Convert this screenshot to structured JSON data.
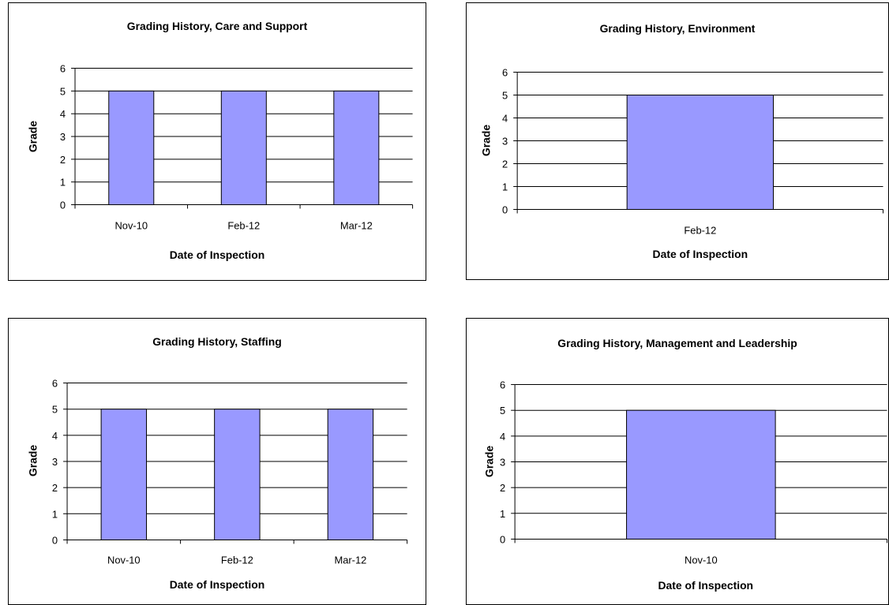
{
  "chart_data": [
    {
      "type": "bar",
      "title": "Grading History, Care and Support",
      "xlabel": "Date of Inspection",
      "ylabel": "Grade",
      "categories": [
        "Nov-10",
        "Feb-12",
        "Mar-12"
      ],
      "values": [
        5,
        5,
        5
      ],
      "ylim": [
        0,
        6
      ],
      "yticks": [
        "0",
        "1",
        "2",
        "3",
        "4",
        "5",
        "6"
      ],
      "grid": true,
      "legend": "none",
      "bar_color": "#9999ff"
    },
    {
      "type": "bar",
      "title": "Grading History, Environment",
      "xlabel": "Date of Inspection",
      "ylabel": "Grade",
      "categories": [
        "Feb-12"
      ],
      "values": [
        5
      ],
      "ylim": [
        0,
        6
      ],
      "yticks": [
        "0",
        "1",
        "2",
        "3",
        "4",
        "5",
        "6"
      ],
      "grid": true,
      "legend": "none",
      "bar_color": "#9999ff"
    },
    {
      "type": "bar",
      "title": "Grading History, Staffing",
      "xlabel": "Date of Inspection",
      "ylabel": "Grade",
      "categories": [
        "Nov-10",
        "Feb-12",
        "Mar-12"
      ],
      "values": [
        5,
        5,
        5
      ],
      "ylim": [
        0,
        6
      ],
      "yticks": [
        "0",
        "1",
        "2",
        "3",
        "4",
        "5",
        "6"
      ],
      "grid": true,
      "legend": "none",
      "bar_color": "#9999ff"
    },
    {
      "type": "bar",
      "title": "Grading History, Management and Leadership",
      "xlabel": "Date of Inspection",
      "ylabel": "Grade",
      "categories": [
        "Nov-10"
      ],
      "values": [
        5
      ],
      "ylim": [
        0,
        6
      ],
      "yticks": [
        "0",
        "1",
        "2",
        "3",
        "4",
        "5",
        "6"
      ],
      "grid": true,
      "legend": "none",
      "bar_color": "#9999ff"
    }
  ]
}
